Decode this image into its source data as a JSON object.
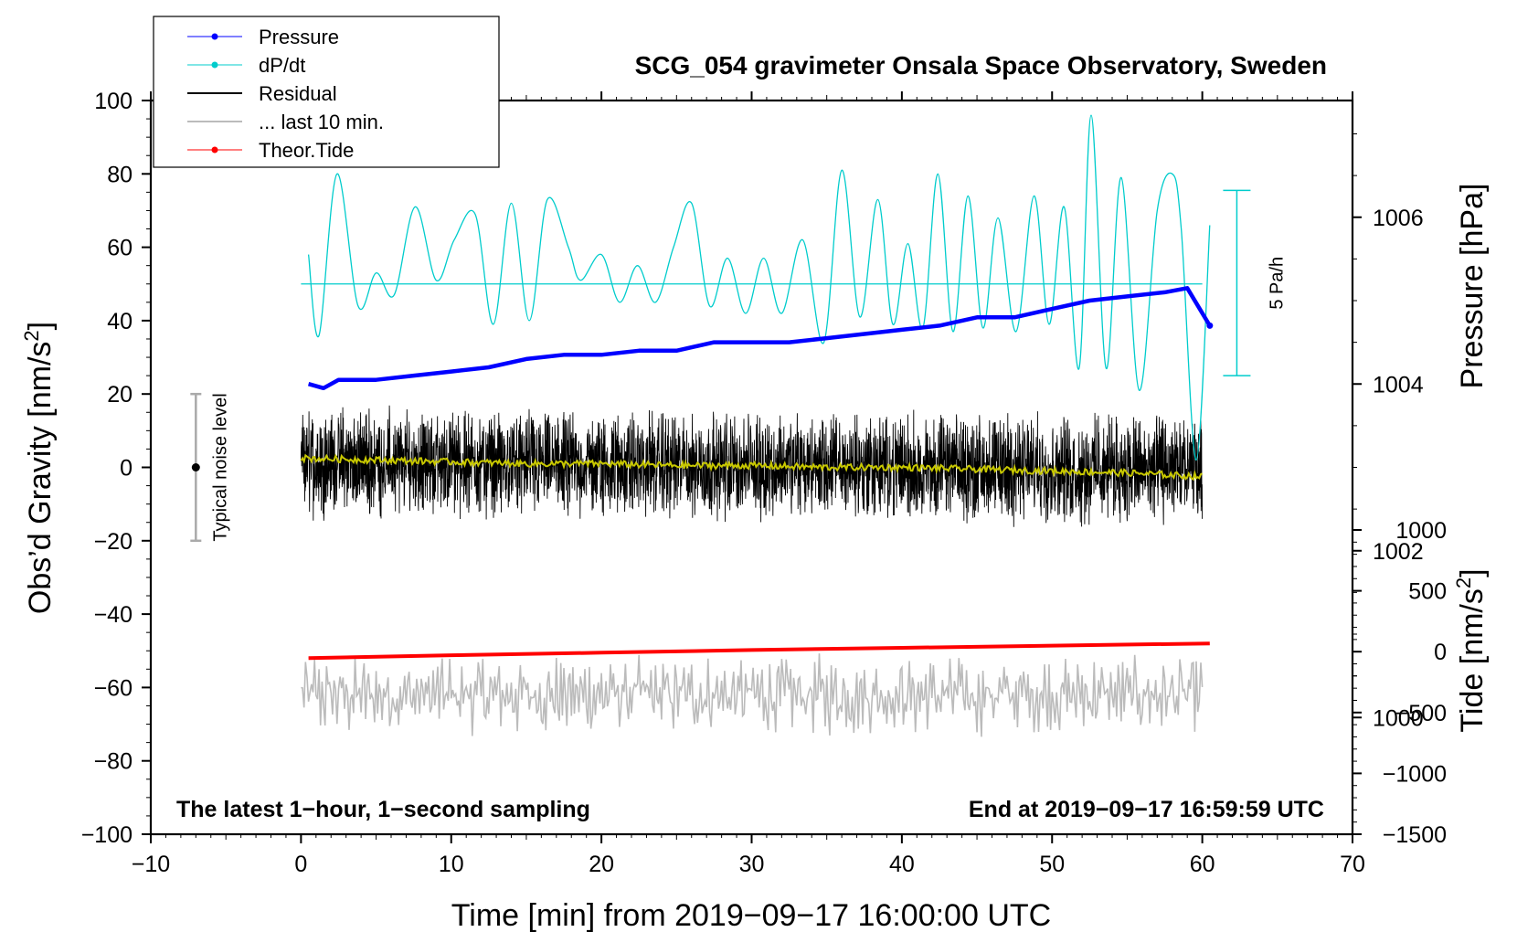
{
  "chart_data": {
    "type": "line",
    "title": "SCG_054 gravimeter Onsala Space Observatory, Sweden",
    "xlabel": "Time [min] from 2019−09−17 16:00:00 UTC",
    "ylabel_left": "Obs’d Gravity [nm/s",
    "ylabel_left_sup": "2",
    "ylabel_left_close": "]",
    "ylabel_right_pressure": "Pressure [hPa]",
    "ylabel_right_tide": "Tide [nm/s",
    "ylabel_right_tide_sup": "2",
    "ylabel_right_tide_close": "]",
    "xlim": [
      -10,
      70
    ],
    "ylim_left": [
      -100,
      100
    ],
    "x_ticks": [
      "−10",
      "0",
      "10",
      "20",
      "30",
      "40",
      "50",
      "60",
      "70"
    ],
    "x_tick_values": [
      -10,
      0,
      10,
      20,
      30,
      40,
      50,
      60,
      70
    ],
    "y_left_ticks": [
      "100",
      "80",
      "60",
      "40",
      "20",
      "0",
      "−20",
      "−40",
      "−60",
      "−80",
      "−100"
    ],
    "y_left_tick_values": [
      100,
      80,
      60,
      40,
      20,
      0,
      -20,
      -40,
      -60,
      -80,
      -100
    ],
    "pressure_axis": {
      "ticks": [
        "1006",
        "1004",
        "1002",
        "1000"
      ],
      "tick_values": [
        1006,
        1004,
        1002,
        1000
      ],
      "range_hpa": [
        998.6,
        1007.4
      ]
    },
    "tide_axis": {
      "ticks": [
        "1000",
        "500",
        "0",
        "−500",
        "−1000",
        "−1500"
      ],
      "tick_values": [
        1000,
        500,
        0,
        -500,
        -1000,
        -1500
      ],
      "range": [
        -1500,
        1000
      ]
    },
    "legend": [
      {
        "label": "Pressure",
        "color": "#0000ff",
        "style": "line-dot"
      },
      {
        "label": "dP/dt",
        "color": "#00cccc",
        "style": "line-dot"
      },
      {
        "label": "Residual",
        "color": "#000000",
        "style": "line"
      },
      {
        "label": "... last 10 min.",
        "color": "#bbbbbb",
        "style": "line"
      },
      {
        "label": "Theor.Tide",
        "color": "#ff0000",
        "style": "line-dot"
      }
    ],
    "series": [
      {
        "name": "Pressure",
        "axis": "pressure_hpa",
        "color": "#0000ff",
        "x": [
          0.5,
          1.5,
          2.5,
          5,
          7.5,
          10,
          12.5,
          15,
          17.5,
          20,
          22.5,
          25,
          27.5,
          30,
          32.5,
          35,
          37.5,
          40,
          42.5,
          45,
          47.5,
          50,
          52.5,
          55,
          57.5,
          59,
          60.5
        ],
        "values": [
          1004.0,
          1003.95,
          1004.05,
          1004.05,
          1004.1,
          1004.15,
          1004.2,
          1004.3,
          1004.35,
          1004.35,
          1004.4,
          1004.4,
          1004.5,
          1004.5,
          1004.5,
          1004.55,
          1004.6,
          1004.65,
          1004.7,
          1004.8,
          1004.8,
          1004.9,
          1005.0,
          1005.05,
          1005.1,
          1005.15,
          1004.7
        ]
      },
      {
        "name": "dP/dt",
        "axis": "gravity",
        "color": "#00cccc",
        "x": [
          0.5,
          1.2,
          2.4,
          3.8,
          5.0,
          6.2,
          7.6,
          9.0,
          10.2,
          11.6,
          12.8,
          14.0,
          15.2,
          16.4,
          17.8,
          18.6,
          20.0,
          21.2,
          22.4,
          23.6,
          24.8,
          26.0,
          27.2,
          28.4,
          29.6,
          30.8,
          32.0,
          33.4,
          34.8,
          36.0,
          37.2,
          38.4,
          39.4,
          40.4,
          41.4,
          42.4,
          43.4,
          44.4,
          45.4,
          46.4,
          47.6,
          48.8,
          49.8,
          50.8,
          51.8,
          52.6,
          53.6,
          54.6,
          55.8,
          57.0,
          58.0,
          58.6,
          59.6,
          60.5
        ],
        "values": [
          58,
          36,
          80,
          44,
          53,
          47,
          71,
          51,
          62,
          69,
          39,
          72,
          40,
          73,
          60,
          51,
          58,
          45,
          55,
          45,
          60,
          72,
          44,
          57,
          42,
          57,
          42,
          62,
          34,
          81,
          41,
          73,
          39,
          61,
          38,
          80,
          37,
          74,
          38,
          68,
          37,
          74,
          39,
          71,
          27,
          96,
          27,
          79,
          21,
          70,
          80,
          65,
          2,
          66
        ]
      },
      {
        "name": "dP/dt baseline",
        "axis": "gravity",
        "color": "#00cccc",
        "x": [
          0,
          60
        ],
        "values": [
          50,
          50
        ]
      },
      {
        "name": "Residual",
        "axis": "gravity",
        "color": "#000000",
        "x_range": [
          0,
          60
        ],
        "mean": 0,
        "amplitude": 18,
        "samples": 3600
      },
      {
        "name": "Residual smoothed",
        "axis": "gravity",
        "color": "#c8c800",
        "x": [
          0,
          5,
          10,
          15,
          20,
          25,
          30,
          35,
          40,
          45,
          50,
          55,
          60
        ],
        "values": [
          2.5,
          2,
          1.5,
          1,
          1,
          0.5,
          0.5,
          0,
          0,
          -0.5,
          -1,
          -1.5,
          -2.5
        ]
      },
      {
        "name": "... last 10 min.",
        "axis": "gravity",
        "color": "#bbbbbb",
        "x_range": [
          0,
          60
        ],
        "mean": -62,
        "amplitude": 13,
        "samples": 600
      },
      {
        "name": "Theor.Tide",
        "axis": "tide",
        "color": "#ff0000",
        "x": [
          0.5,
          10,
          20,
          30,
          40,
          50,
          60.5
        ],
        "values": [
          -52,
          -51.2,
          -50.5,
          -49.8,
          -49.2,
          -48.6,
          -48
        ]
      }
    ],
    "scale_bar": {
      "label": "5 Pa/h",
      "y_top": 75.5,
      "y_bottom": 25,
      "x": 62.3,
      "color": "#00cccc"
    },
    "noise_bar": {
      "label": "Typical noise level",
      "y_top": 20,
      "y_bottom": -20,
      "center": 0,
      "x": -7,
      "color": "#aaaaaa"
    },
    "notes": {
      "bottom_left": "The latest 1−hour, 1−second sampling",
      "bottom_right": "End at 2019−09−17 16:59:59 UTC"
    }
  }
}
